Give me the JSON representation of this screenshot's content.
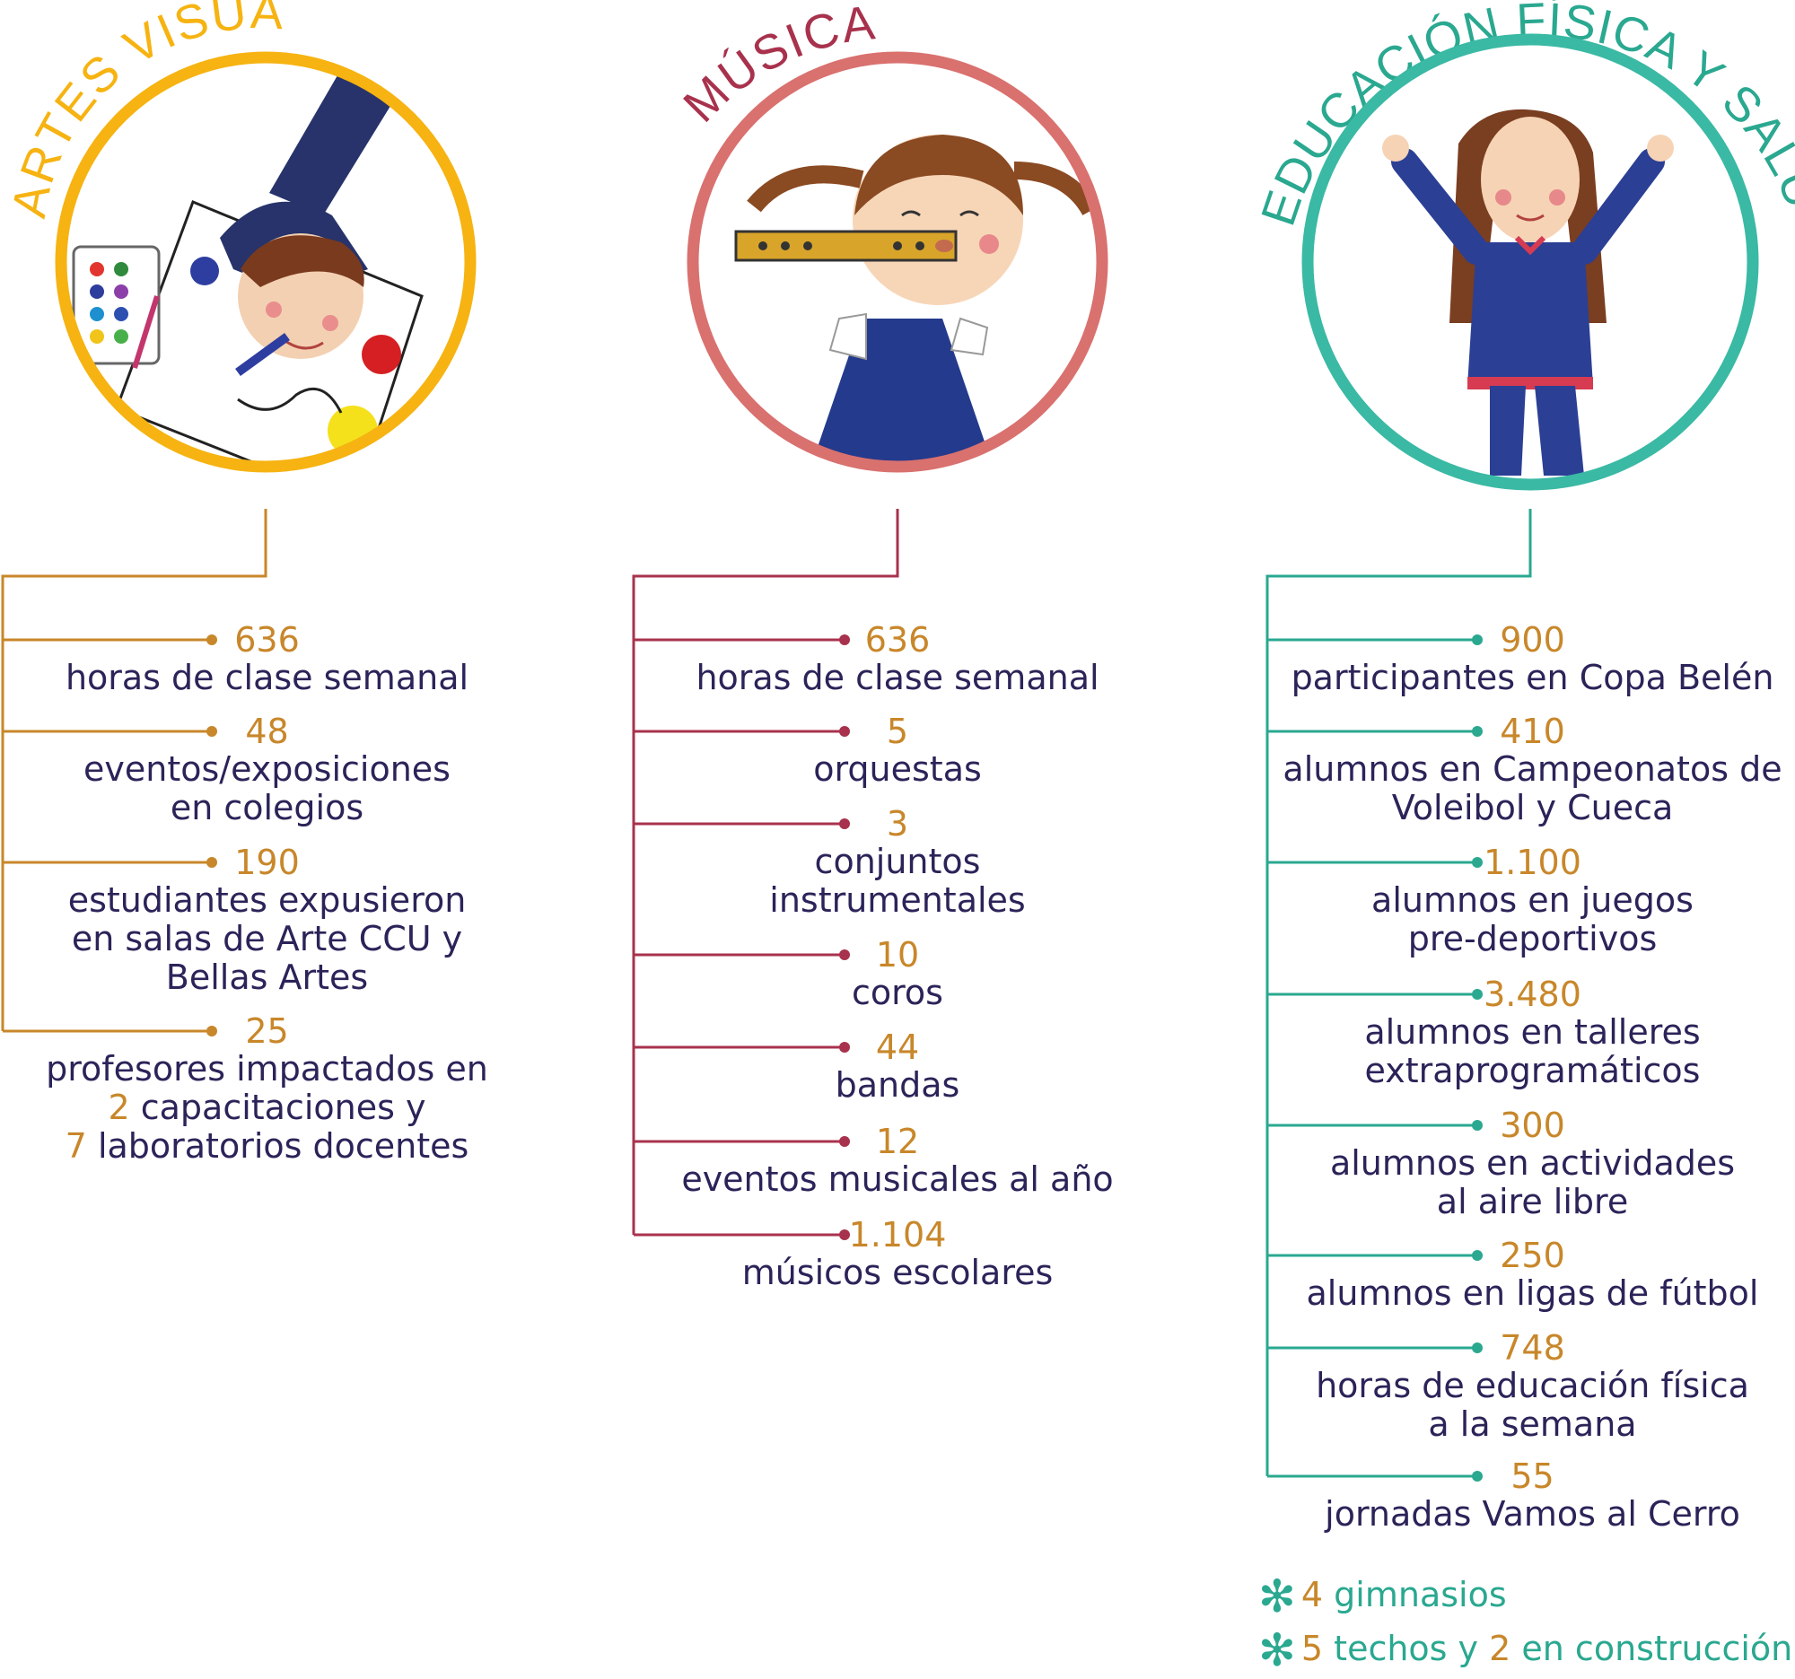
{
  "colors": {
    "artes": "#f6b311",
    "artes_line": "#c8872a",
    "musica": "#d9716f",
    "musica_line": "#a8324d",
    "musica_title": "#a8324d",
    "educacion": "#3ab9a4",
    "educacion_line": "#2aa890",
    "number": "#c8872a",
    "text": "#2b2459"
  },
  "columns": [
    {
      "title": "ARTES VISUALES",
      "illustration": "child-drawing-illustration",
      "items": [
        {
          "value": "636",
          "label": "horas de clase semanal"
        },
        {
          "value": "48",
          "label": "eventos/exposiciones\nen colegios"
        },
        {
          "value": "190",
          "label": "estudiantes expusieron\nen salas de Arte CCU y\nBellas Artes"
        },
        {
          "value": "25",
          "label_line1": "profesores impactados en",
          "n1": "2",
          "label_line2": " capacitaciones y",
          "n2": "7",
          "label_line3": " laboratorios docentes"
        }
      ]
    },
    {
      "title": "MÚSICA",
      "illustration": "girl-playing-flute-illustration",
      "items": [
        {
          "value": "636",
          "label": "horas de clase semanal"
        },
        {
          "value": "5",
          "label": "orquestas"
        },
        {
          "value": "3",
          "label": "conjuntos\ninstrumentales"
        },
        {
          "value": "10",
          "label": "coros"
        },
        {
          "value": "44",
          "label": "bandas"
        },
        {
          "value": "12",
          "label": "eventos musicales al año"
        },
        {
          "value": "1.104",
          "label": "músicos escolares"
        }
      ]
    },
    {
      "title": "EDUCACIÓN FÍSICA Y SALUD",
      "illustration": "girl-cheering-illustration",
      "items": [
        {
          "value": "900",
          "label": "participantes en Copa Belén"
        },
        {
          "value": "410",
          "label": "alumnos en Campeonatos de\nVoleibol y Cueca"
        },
        {
          "value": "1.100",
          "label": "alumnos en juegos\npre-deportivos"
        },
        {
          "value": "3.480",
          "label": "alumnos en talleres\nextraprogramáticos"
        },
        {
          "value": "300",
          "label": "alumnos en actividades\nal aire libre"
        },
        {
          "value": "250",
          "label": "alumnos en ligas de fútbol"
        },
        {
          "value": "748",
          "label": "horas de educación física\na la semana"
        },
        {
          "value": "55",
          "label": "jornadas Vamos al Cerro"
        }
      ],
      "footnotes": [
        {
          "n": "4",
          "text": " gimnasios"
        },
        {
          "n": "5",
          "text1": " techos y ",
          "n2": "2",
          "text2": " en construcción"
        }
      ]
    }
  ]
}
